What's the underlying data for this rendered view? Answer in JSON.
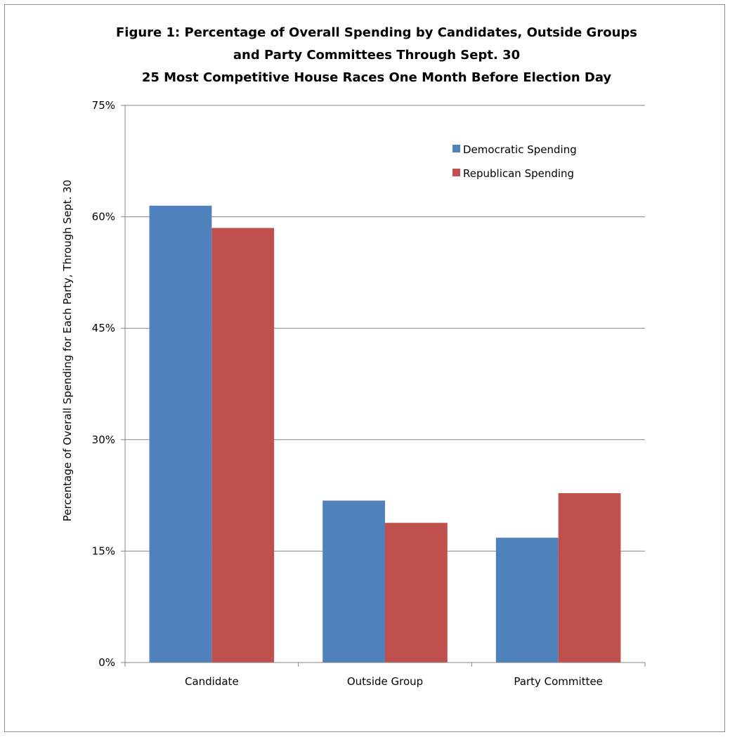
{
  "chart_data": {
    "type": "bar",
    "title_lines": [
      "Figure 1: Percentage of Overall Spending by Candidates, Outside Groups",
      "and Party Committees Through Sept. 30",
      "25 Most Competitive House Races One Month Before Election Day"
    ],
    "xlabel": "",
    "ylabel": "Percentage of Overall Spending for Each Party, Through Sept. 30",
    "categories": [
      "Candidate",
      "Outside Group",
      "Party Committee"
    ],
    "series": [
      {
        "name": "Democratic Spending",
        "color": "#4f81bd",
        "values": [
          61.5,
          21.8,
          16.8
        ]
      },
      {
        "name": "Republican Spending",
        "color": "#c0504d",
        "values": [
          58.5,
          18.8,
          22.8
        ]
      }
    ],
    "ylim": [
      0,
      75
    ],
    "yticks": [
      0,
      15,
      30,
      45,
      60,
      75
    ],
    "ytick_labels": [
      "0%",
      "15%",
      "30%",
      "45%",
      "60%",
      "75%"
    ],
    "grid": true,
    "legend_position": "top-right"
  }
}
